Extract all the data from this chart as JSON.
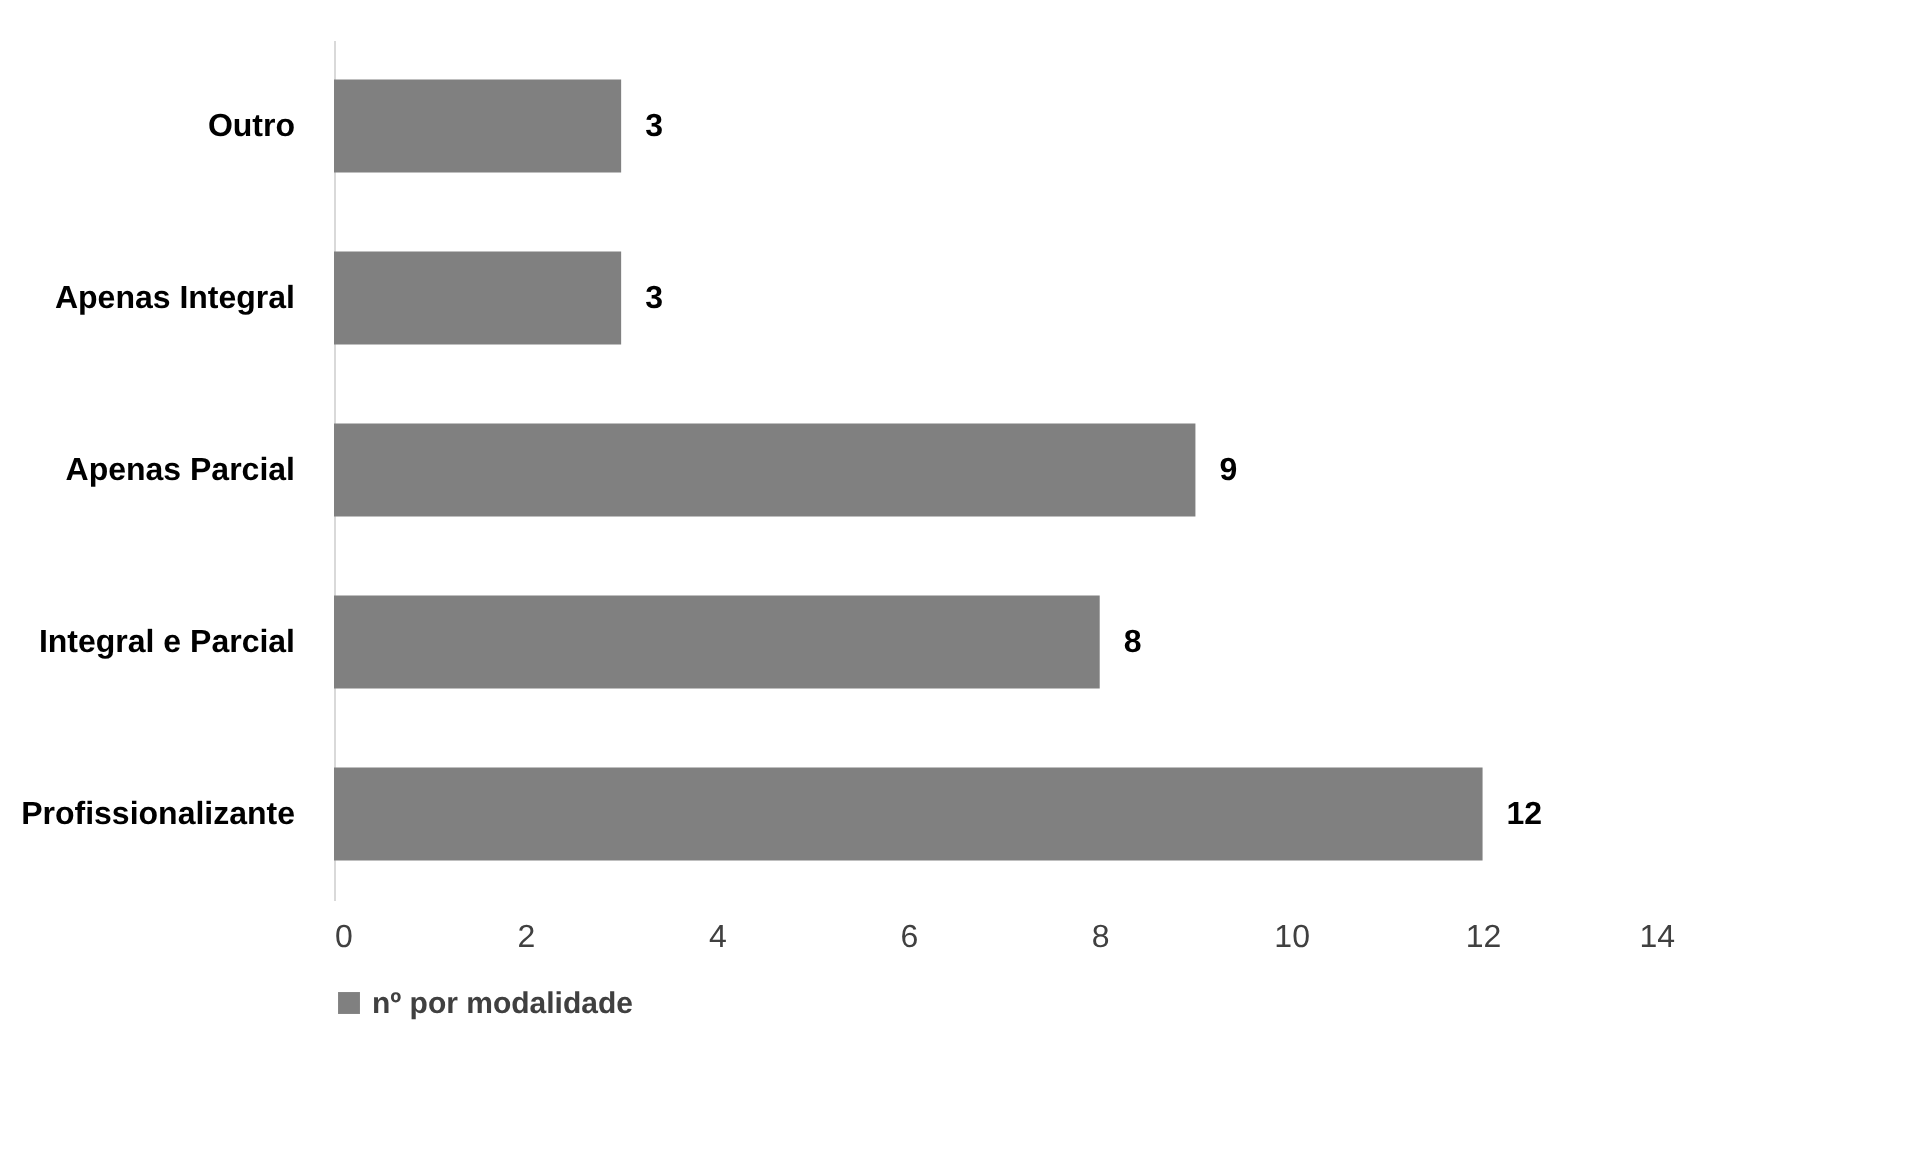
{
  "chart_data": {
    "type": "bar",
    "orientation": "horizontal",
    "categories": [
      "Outro",
      "Apenas Integral",
      "Apenas Parcial",
      "Integral e Parcial",
      "Profissionalizante"
    ],
    "series": [
      {
        "name": "nº por modalidade",
        "color": "#808080",
        "values": [
          3,
          3,
          9,
          8,
          12
        ]
      }
    ],
    "xlim": [
      0,
      14
    ],
    "xticks": [
      0,
      2,
      4,
      6,
      8,
      10,
      12,
      14
    ],
    "data_labels": true,
    "grid": false,
    "legend": "bottom"
  }
}
